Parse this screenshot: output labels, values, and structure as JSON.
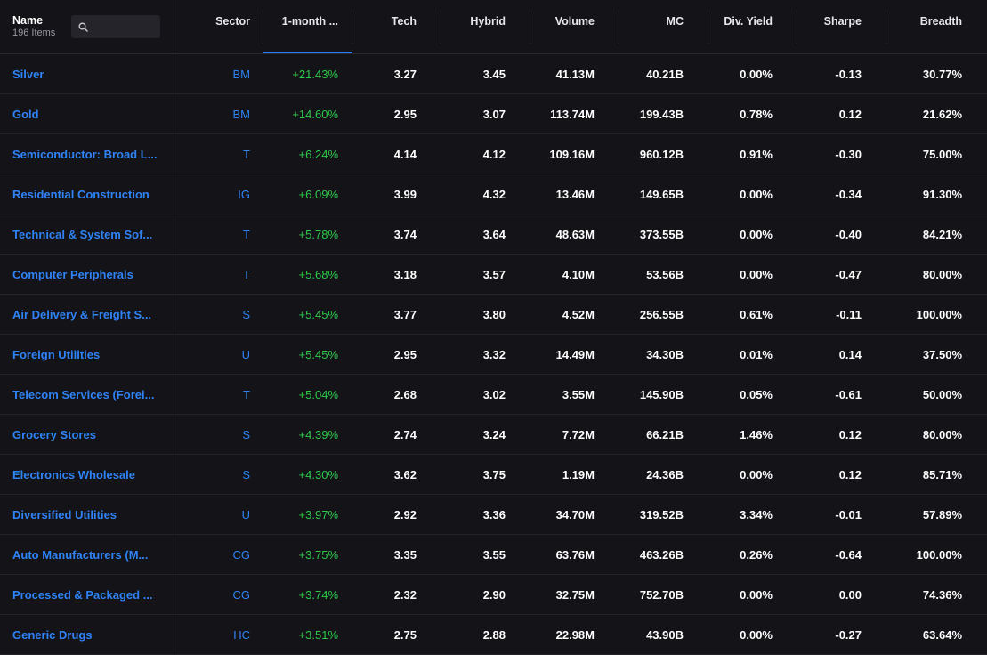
{
  "header": {
    "name_label": "Name",
    "item_count": "196 Items",
    "columns": {
      "sector": "Sector",
      "month": "1-month ...",
      "tech": "Tech",
      "hybrid": "Hybrid",
      "volume": "Volume",
      "mc": "MC",
      "div": "Div. Yield",
      "sharpe": "Sharpe",
      "breadth": "Breadth"
    }
  },
  "colors": {
    "background": "#131318",
    "link": "#2f83f5",
    "positive": "#2ec94a",
    "sort_accent": "#2a7ef5"
  },
  "rows": [
    {
      "name": "Silver",
      "sector": "BM",
      "month": "+21.43%",
      "tech": "3.27",
      "hybrid": "3.45",
      "volume": "41.13M",
      "mc": "40.21B",
      "div": "0.00%",
      "sharpe": "-0.13",
      "breadth": "30.77%"
    },
    {
      "name": "Gold",
      "sector": "BM",
      "month": "+14.60%",
      "tech": "2.95",
      "hybrid": "3.07",
      "volume": "113.74M",
      "mc": "199.43B",
      "div": "0.78%",
      "sharpe": "0.12",
      "breadth": "21.62%"
    },
    {
      "name": "Semiconductor: Broad L...",
      "sector": "T",
      "month": "+6.24%",
      "tech": "4.14",
      "hybrid": "4.12",
      "volume": "109.16M",
      "mc": "960.12B",
      "div": "0.91%",
      "sharpe": "-0.30",
      "breadth": "75.00%"
    },
    {
      "name": "Residential Construction",
      "sector": "IG",
      "month": "+6.09%",
      "tech": "3.99",
      "hybrid": "4.32",
      "volume": "13.46M",
      "mc": "149.65B",
      "div": "0.00%",
      "sharpe": "-0.34",
      "breadth": "91.30%"
    },
    {
      "name": "Technical & System Sof...",
      "sector": "T",
      "month": "+5.78%",
      "tech": "3.74",
      "hybrid": "3.64",
      "volume": "48.63M",
      "mc": "373.55B",
      "div": "0.00%",
      "sharpe": "-0.40",
      "breadth": "84.21%"
    },
    {
      "name": "Computer Peripherals",
      "sector": "T",
      "month": "+5.68%",
      "tech": "3.18",
      "hybrid": "3.57",
      "volume": "4.10M",
      "mc": "53.56B",
      "div": "0.00%",
      "sharpe": "-0.47",
      "breadth": "80.00%"
    },
    {
      "name": "Air Delivery & Freight S...",
      "sector": "S",
      "month": "+5.45%",
      "tech": "3.77",
      "hybrid": "3.80",
      "volume": "4.52M",
      "mc": "256.55B",
      "div": "0.61%",
      "sharpe": "-0.11",
      "breadth": "100.00%"
    },
    {
      "name": "Foreign Utilities",
      "sector": "U",
      "month": "+5.45%",
      "tech": "2.95",
      "hybrid": "3.32",
      "volume": "14.49M",
      "mc": "34.30B",
      "div": "0.01%",
      "sharpe": "0.14",
      "breadth": "37.50%"
    },
    {
      "name": "Telecom Services (Forei...",
      "sector": "T",
      "month": "+5.04%",
      "tech": "2.68",
      "hybrid": "3.02",
      "volume": "3.55M",
      "mc": "145.90B",
      "div": "0.05%",
      "sharpe": "-0.61",
      "breadth": "50.00%"
    },
    {
      "name": "Grocery Stores",
      "sector": "S",
      "month": "+4.39%",
      "tech": "2.74",
      "hybrid": "3.24",
      "volume": "7.72M",
      "mc": "66.21B",
      "div": "1.46%",
      "sharpe": "0.12",
      "breadth": "80.00%"
    },
    {
      "name": "Electronics Wholesale",
      "sector": "S",
      "month": "+4.30%",
      "tech": "3.62",
      "hybrid": "3.75",
      "volume": "1.19M",
      "mc": "24.36B",
      "div": "0.00%",
      "sharpe": "0.12",
      "breadth": "85.71%"
    },
    {
      "name": "Diversified Utilities",
      "sector": "U",
      "month": "+3.97%",
      "tech": "2.92",
      "hybrid": "3.36",
      "volume": "34.70M",
      "mc": "319.52B",
      "div": "3.34%",
      "sharpe": "-0.01",
      "breadth": "57.89%"
    },
    {
      "name": "Auto Manufacturers (M...",
      "sector": "CG",
      "month": "+3.75%",
      "tech": "3.35",
      "hybrid": "3.55",
      "volume": "63.76M",
      "mc": "463.26B",
      "div": "0.26%",
      "sharpe": "-0.64",
      "breadth": "100.00%"
    },
    {
      "name": "Processed & Packaged ...",
      "sector": "CG",
      "month": "+3.74%",
      "tech": "2.32",
      "hybrid": "2.90",
      "volume": "32.75M",
      "mc": "752.70B",
      "div": "0.00%",
      "sharpe": "0.00",
      "breadth": "74.36%"
    },
    {
      "name": "Generic Drugs",
      "sector": "HC",
      "month": "+3.51%",
      "tech": "2.75",
      "hybrid": "2.88",
      "volume": "22.98M",
      "mc": "43.90B",
      "div": "0.00%",
      "sharpe": "-0.27",
      "breadth": "63.64%"
    }
  ]
}
